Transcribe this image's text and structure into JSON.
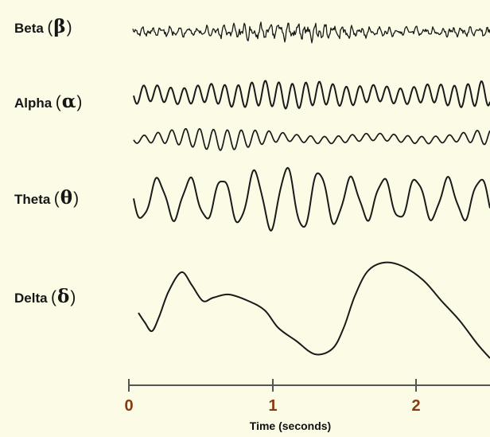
{
  "figure": {
    "bands": [
      {
        "name": "Beta",
        "symbol": "β"
      },
      {
        "name": "Alpha",
        "symbol": "α"
      },
      {
        "name": "Theta",
        "symbol": "θ"
      },
      {
        "name": "Delta",
        "symbol": "δ"
      }
    ],
    "time_axis": {
      "title": "Time (seconds)",
      "ticks": [
        "0",
        "1",
        "2"
      ]
    },
    "colors": {
      "background": "#fbfbe6",
      "trace": "#1a1a1a",
      "axis": "#555555",
      "tick_label": "#8a3a12"
    }
  }
}
